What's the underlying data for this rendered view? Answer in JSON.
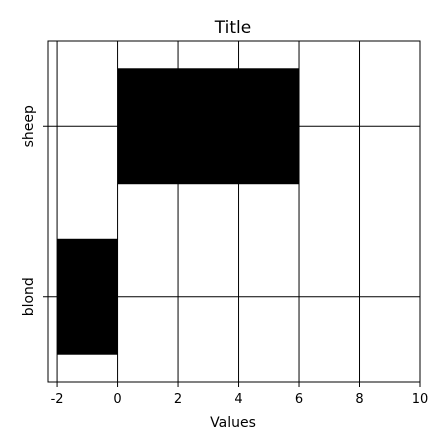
{
  "chart_data": {
    "type": "bar",
    "orientation": "horizontal",
    "title": "Title",
    "xlabel": "Values",
    "ylabel": "",
    "categories": [
      "sheep",
      "blond"
    ],
    "values": [
      6,
      -2
    ],
    "xlim": [
      -2.3,
      10
    ],
    "xticks": [
      -2,
      0,
      2,
      4,
      6,
      8,
      10
    ],
    "grid": true,
    "legend": "none",
    "bar_color": "#000000"
  }
}
